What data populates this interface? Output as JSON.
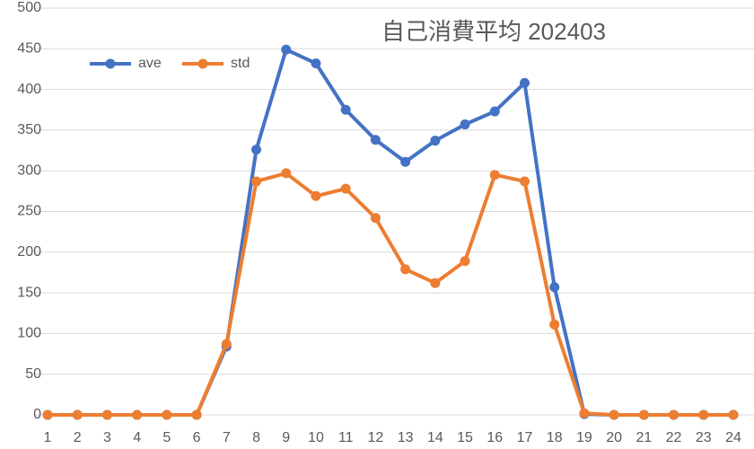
{
  "chart_data": {
    "type": "line",
    "title": "自己消費平均  202403",
    "categories": [
      "1",
      "2",
      "3",
      "4",
      "5",
      "6",
      "7",
      "8",
      "9",
      "10",
      "11",
      "12",
      "13",
      "14",
      "15",
      "16",
      "17",
      "18",
      "19",
      "20",
      "21",
      "22",
      "23",
      "24"
    ],
    "series": [
      {
        "name": "ave",
        "color": "#4472c4",
        "values": [
          0,
          0,
          0,
          0,
          0,
          0,
          84,
          326,
          449,
          432,
          375,
          338,
          311,
          337,
          357,
          373,
          408,
          157,
          1,
          0,
          0,
          0,
          0,
          0
        ]
      },
      {
        "name": "std",
        "color": "#ed7d31",
        "values": [
          0,
          0,
          0,
          0,
          0,
          0,
          87,
          287,
          297,
          269,
          278,
          242,
          179,
          162,
          189,
          295,
          287,
          111,
          2,
          0,
          0,
          0,
          0,
          0
        ]
      }
    ],
    "ylim": [
      0,
      500
    ],
    "yticks": [
      0,
      50,
      100,
      150,
      200,
      250,
      300,
      350,
      400,
      450,
      500
    ],
    "grid": true
  }
}
